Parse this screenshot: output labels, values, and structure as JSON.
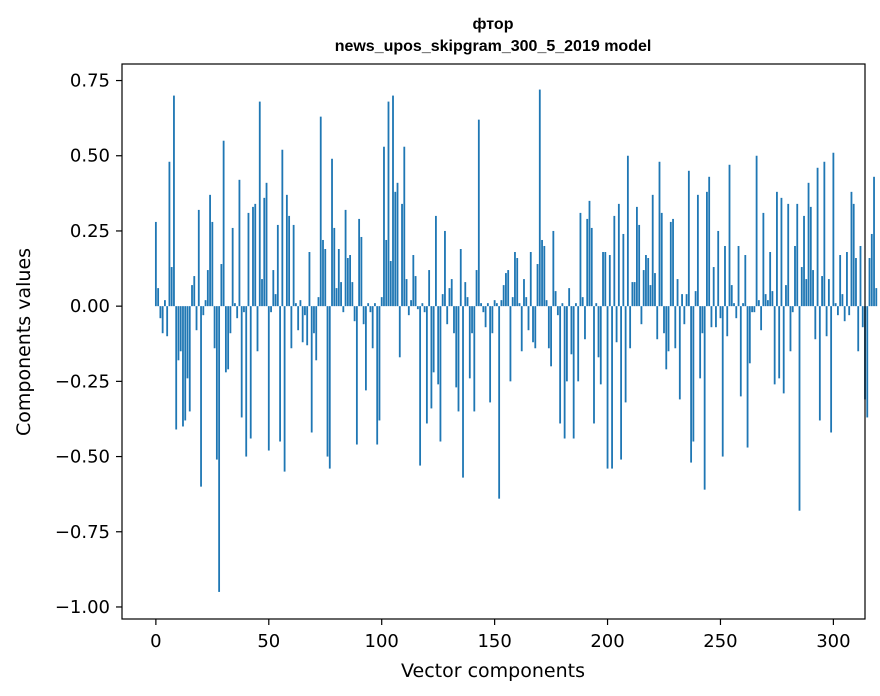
{
  "chart_data": {
    "type": "bar",
    "title_line1": "фтор",
    "title_line2": "news_upos_skipgram_300_5_2019 model",
    "xlabel": "Vector components",
    "ylabel": "Components values",
    "xlim": [
      -15,
      314
    ],
    "ylim": [
      -1.04,
      0.805
    ],
    "xticks": [
      0,
      50,
      100,
      150,
      200,
      250,
      300
    ],
    "xtick_labels": [
      "0",
      "50",
      "100",
      "150",
      "200",
      "250",
      "300"
    ],
    "yticks": [
      0.75,
      0.5,
      0.25,
      0.0,
      -0.25,
      -0.5,
      -0.75,
      -1.0
    ],
    "ytick_labels": [
      "0.75",
      "0.50",
      "0.25",
      "0.00",
      "−0.25",
      "−0.50",
      "−0.75",
      "−1.00"
    ],
    "bar_color": "#1f77b4",
    "values": [
      0.28,
      0.06,
      -0.04,
      -0.09,
      0.02,
      -0.1,
      0.48,
      0.13,
      0.7,
      -0.41,
      -0.18,
      -0.15,
      -0.4,
      -0.38,
      -0.24,
      -0.35,
      0.07,
      0.1,
      -0.08,
      0.32,
      -0.6,
      -0.03,
      0.02,
      0.12,
      0.37,
      0.28,
      -0.14,
      -0.51,
      -0.95,
      0.14,
      0.55,
      -0.22,
      -0.21,
      -0.09,
      0.26,
      0.01,
      -0.04,
      0.42,
      -0.37,
      -0.02,
      -0.5,
      0.31,
      -0.44,
      0.33,
      0.34,
      -0.15,
      0.68,
      0.09,
      0.36,
      0.41,
      -0.48,
      -0.02,
      0.12,
      0.04,
      0.27,
      -0.45,
      0.52,
      -0.55,
      0.37,
      0.3,
      -0.14,
      0.27,
      0.01,
      -0.08,
      0.02,
      -0.12,
      -0.03,
      -0.13,
      0.18,
      -0.42,
      -0.09,
      -0.18,
      0.03,
      0.63,
      0.22,
      0.19,
      -0.5,
      -0.54,
      0.49,
      0.26,
      0.06,
      0.19,
      0.08,
      -0.02,
      0.32,
      0.16,
      0.17,
      0.08,
      -0.05,
      -0.46,
      0.29,
      0.23,
      -0.06,
      -0.28,
      0.01,
      -0.02,
      -0.14,
      0.01,
      -0.46,
      -0.38,
      0.03,
      0.53,
      0.22,
      0.68,
      0.15,
      0.7,
      0.38,
      0.41,
      -0.17,
      0.34,
      0.53,
      0.09,
      -0.03,
      0.02,
      0.17,
      0.1,
      -0.01,
      -0.53,
      0.01,
      -0.02,
      -0.39,
      0.12,
      -0.34,
      -0.22,
      0.3,
      -0.26,
      -0.45,
      0.04,
      0.25,
      -0.06,
      0.06,
      0.09,
      -0.09,
      -0.27,
      -0.35,
      0.19,
      -0.57,
      0.08,
      0.03,
      -0.24,
      -0.09,
      -0.35,
      0.12,
      0.62,
      0.01,
      -0.02,
      -0.07,
      0.01,
      -0.32,
      -0.09,
      0.02,
      0.01,
      -0.64,
      0.02,
      0.07,
      0.11,
      0.12,
      -0.25,
      0.03,
      0.18,
      0.16,
      0.01,
      -0.15,
      0.09,
      0.03,
      -0.08,
      0.18,
      -0.12,
      -0.14,
      0.14,
      0.72,
      0.22,
      0.2,
      0.02,
      -0.14,
      -0.2,
      0.25,
      0.05,
      -0.03,
      -0.39,
      0.01,
      -0.44,
      -0.25,
      0.06,
      -0.16,
      -0.44,
      0.01,
      -0.25,
      0.31,
      0.03,
      -0.11,
      0.29,
      0.35,
      0.26,
      -0.39,
      0.01,
      -0.17,
      -0.26,
      0.18,
      0.18,
      -0.54,
      0.17,
      -0.54,
      0.3,
      -0.12,
      0.34,
      -0.51,
      0.24,
      -0.32,
      0.5,
      -0.14,
      0.08,
      0.08,
      0.33,
      0.27,
      -0.06,
      0.12,
      0.17,
      0.16,
      0.07,
      0.37,
      0.11,
      -0.11,
      0.48,
      0.31,
      -0.09,
      -0.21,
      -0.15,
      0.28,
      0.29,
      -0.14,
      0.09,
      -0.31,
      0.04,
      -0.06,
      0.04,
      0.45,
      -0.52,
      -0.45,
      0.05,
      0.37,
      -0.24,
      -0.09,
      -0.61,
      0.38,
      0.43,
      -0.07,
      0.13,
      -0.07,
      0.25,
      -0.04,
      -0.5,
      0.2,
      -0.1,
      0.47,
      0.07,
      0.01,
      -0.04,
      0.2,
      -0.3,
      0.01,
      0.17,
      -0.47,
      -0.19,
      -0.02,
      -0.02,
      0.5,
      0.02,
      -0.08,
      0.31,
      0.04,
      0.02,
      0.18,
      0.05,
      -0.26,
      0.38,
      -0.24,
      0.36,
      -0.29,
      0.07,
      0.34,
      -0.15,
      -0.02,
      0.2,
      0.34,
      -0.68,
      0.13,
      0.3,
      0.09,
      0.41,
      0.33,
      0.12,
      -0.11,
      0.46,
      -0.38,
      0.1,
      0.48,
      -0.1,
      0.09,
      -0.42,
      0.51,
      0.01,
      -0.03,
      0.17,
      0.04,
      -0.05,
      0.18,
      -0.03,
      0.38,
      0.34,
      0.16,
      -0.15,
      0.2,
      -0.07,
      -0.31,
      -0.37,
      0.16,
      0.24,
      0.43,
      0.06
    ]
  }
}
